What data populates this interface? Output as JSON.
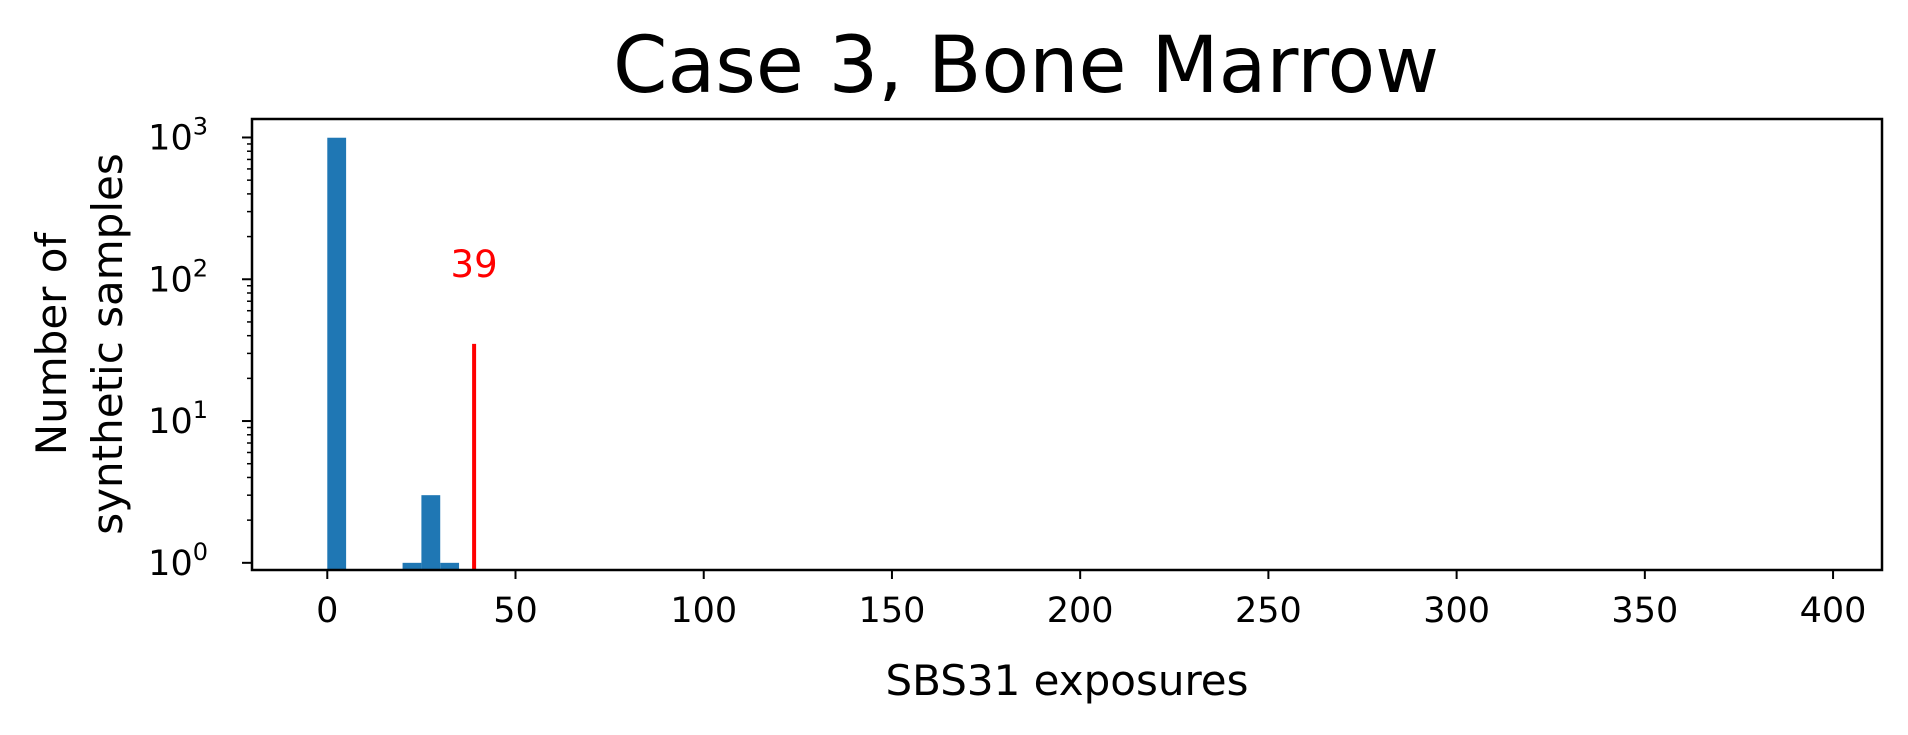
{
  "chart_data": {
    "type": "bar",
    "title": "Case 3, Bone Marrow",
    "xlabel": "SBS31 exposures",
    "ylabel": [
      "Number of",
      "synthetic samples"
    ],
    "xlim": [
      -20,
      413
    ],
    "ylim": [
      0.89,
      1350
    ],
    "yscale": "log",
    "xticks": [
      0,
      50,
      100,
      150,
      200,
      250,
      300,
      350,
      400
    ],
    "yticks": [
      {
        "base": "10",
        "exp": "0",
        "value": 1
      },
      {
        "base": "10",
        "exp": "1",
        "value": 10
      },
      {
        "base": "10",
        "exp": "2",
        "value": 100
      },
      {
        "base": "10",
        "exp": "3",
        "value": 1000
      }
    ],
    "bar_color": "#1f77b4",
    "bars": [
      {
        "x0": 0,
        "x1": 5,
        "value": 996
      },
      {
        "x0": 20,
        "x1": 25,
        "value": 1
      },
      {
        "x0": 25,
        "x1": 30,
        "value": 3
      },
      {
        "x0": 30,
        "x1": 35,
        "value": 1
      }
    ],
    "marker": {
      "x": 39,
      "y_top": 35,
      "label": "39",
      "color": "#ff0000"
    },
    "grid": false,
    "legend": "none"
  }
}
